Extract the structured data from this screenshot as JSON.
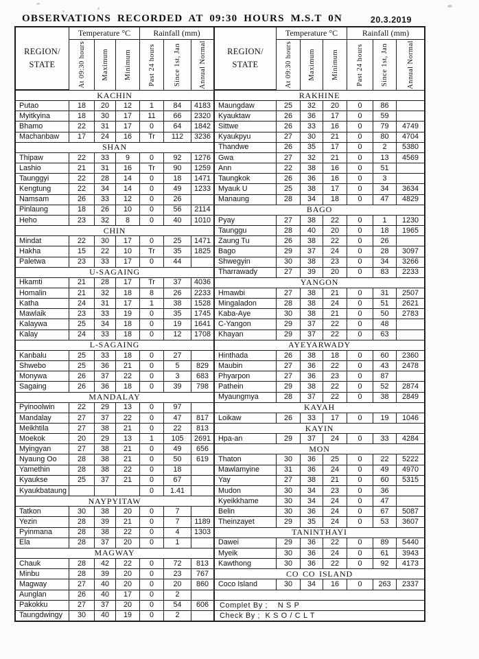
{
  "header": {
    "title": "OBSERVATIONS  RECORDED  AT  09:30  HOURS  M.S.T  0N",
    "date": "20.3.2019"
  },
  "table": {
    "region_header": "REGION/\nSTATE",
    "temp_group": "Temperature  °C",
    "rain_group": "Rainfall (mm)",
    "columns": [
      "At 09:30 hours",
      "Maximum",
      "Minimum",
      "Past 24 hours",
      "Since 1st, Jan",
      "Annual Normal"
    ],
    "left_sections": [
      {
        "name": "KACHIN",
        "rows": [
          {
            "station": "Putao",
            "values": [
              "18",
              "20",
              "12",
              "1",
              "84",
              "4183"
            ]
          },
          {
            "station": "Myitkyina",
            "values": [
              "18",
              "30",
              "17",
              "11",
              "66",
              "2320"
            ]
          },
          {
            "station": "Bhamo",
            "values": [
              "22",
              "31",
              "17",
              "0",
              "64",
              "1842"
            ]
          },
          {
            "station": "Machanbaw",
            "values": [
              "17",
              "24",
              "16",
              "Tr",
              "112",
              "3236"
            ]
          }
        ]
      },
      {
        "name": "SHAN",
        "rows": [
          {
            "station": "Thipaw",
            "values": [
              "22",
              "33",
              "9",
              "0",
              "92",
              "1276"
            ]
          },
          {
            "station": "Lashio",
            "values": [
              "21",
              "31",
              "16",
              "Tr",
              "90",
              "1259"
            ]
          },
          {
            "station": "Taunggyi",
            "values": [
              "22",
              "28",
              "14",
              "0",
              "18",
              "1471"
            ]
          },
          {
            "station": "Kengtung",
            "values": [
              "22",
              "34",
              "14",
              "0",
              "49",
              "1233"
            ]
          },
          {
            "station": "Namsam",
            "values": [
              "26",
              "33",
              "12",
              "0",
              "26",
              ""
            ]
          },
          {
            "station": "Pinlaung",
            "values": [
              "18",
              "26",
              "10",
              "0",
              "56",
              "2114"
            ]
          },
          {
            "station": "Heho",
            "values": [
              "23",
              "32",
              "8",
              "0",
              "40",
              "1010"
            ]
          }
        ]
      },
      {
        "name": "CHIN",
        "rows": [
          {
            "station": "Mindat",
            "values": [
              "22",
              "30",
              "17",
              "0",
              "25",
              "1471"
            ]
          },
          {
            "station": "Hakha",
            "values": [
              "15",
              "22",
              "10",
              "Tr",
              "35",
              "1825"
            ]
          },
          {
            "station": "Paletwa",
            "values": [
              "23",
              "33",
              "17",
              "0",
              "44",
              ""
            ]
          }
        ]
      },
      {
        "name": "U-SAGAING",
        "rows": [
          {
            "station": "Hkamti",
            "values": [
              "21",
              "28",
              "17",
              "Tr",
              "37",
              "4036"
            ]
          },
          {
            "station": "Homalin",
            "values": [
              "21",
              "32",
              "18",
              "8",
              "26",
              "2233"
            ]
          },
          {
            "station": "Katha",
            "values": [
              "24",
              "31",
              "17",
              "1",
              "38",
              "1528"
            ]
          },
          {
            "station": "Mawlaik",
            "values": [
              "23",
              "33",
              "19",
              "0",
              "35",
              "1745"
            ]
          },
          {
            "station": "Kalaywa",
            "values": [
              "25",
              "34",
              "18",
              "0",
              "19",
              "1641"
            ]
          },
          {
            "station": "Kalay",
            "values": [
              "24",
              "33",
              "18",
              "0",
              "12",
              "1708"
            ]
          }
        ]
      },
      {
        "name": "L-SAGAING",
        "rows": [
          {
            "station": "Kanbalu",
            "values": [
              "25",
              "33",
              "18",
              "0",
              "27",
              ""
            ]
          },
          {
            "station": "Shwebo",
            "values": [
              "25",
              "36",
              "21",
              "0",
              "5",
              "829"
            ]
          },
          {
            "station": "Monywa",
            "values": [
              "26",
              "37",
              "22",
              "0",
              "3",
              "683"
            ]
          },
          {
            "station": "Sagaing",
            "values": [
              "26",
              "36",
              "18",
              "0",
              "39",
              "798"
            ]
          }
        ]
      },
      {
        "name": "MANDALAY",
        "rows": [
          {
            "station": "Pyinoolwin",
            "values": [
              "22",
              "29",
              "13",
              "0",
              "97",
              ""
            ]
          },
          {
            "station": "Mandalay",
            "values": [
              "27",
              "37",
              "22",
              "0",
              "47",
              "817"
            ]
          },
          {
            "station": "Meikhtila",
            "values": [
              "27",
              "38",
              "21",
              "0",
              "22",
              "813"
            ]
          },
          {
            "station": "Moekok",
            "values": [
              "20",
              "29",
              "13",
              "1",
              "105",
              "2691"
            ]
          },
          {
            "station": "Myingyan",
            "values": [
              "27",
              "38",
              "21",
              "0",
              "49",
              "656"
            ]
          },
          {
            "station": "Nyaung Oo",
            "values": [
              "28",
              "38",
              "21",
              "0",
              "50",
              "619"
            ]
          },
          {
            "station": "Yamethin",
            "values": [
              "28",
              "38",
              "22",
              "0",
              "18",
              ""
            ]
          },
          {
            "station": "Kyaukse",
            "values": [
              "25",
              "37",
              "21",
              "0",
              "67",
              ""
            ]
          },
          {
            "station": "Kyaukbataung",
            "values": [
              "",
              "",
              "",
              "0",
              "1.41",
              ""
            ]
          }
        ]
      },
      {
        "name": "NAYPYITAW",
        "rows": [
          {
            "station": "Tatkon",
            "values": [
              "30",
              "38",
              "20",
              "0",
              "7",
              ""
            ]
          },
          {
            "station": "Yezin",
            "values": [
              "28",
              "39",
              "21",
              "0",
              "7",
              "1189"
            ]
          },
          {
            "station": "Pyinmana",
            "values": [
              "28",
              "38",
              "22",
              "0",
              "4",
              "1303"
            ]
          },
          {
            "station": "Ela",
            "values": [
              "28",
              "37",
              "20",
              "0",
              "1",
              ""
            ]
          }
        ]
      },
      {
        "name": "MAGWAY",
        "rows": [
          {
            "station": "Chauk",
            "values": [
              "28",
              "42",
              "22",
              "0",
              "72",
              "813"
            ]
          },
          {
            "station": "Minbu",
            "values": [
              "28",
              "39",
              "20",
              "0",
              "23",
              "767"
            ]
          },
          {
            "station": "Magway",
            "values": [
              "27",
              "40",
              "20",
              "0",
              "20",
              "860"
            ]
          },
          {
            "station": "Aunglan",
            "values": [
              "26",
              "40",
              "17",
              "0",
              "2",
              ""
            ]
          },
          {
            "station": "Pakokku",
            "values": [
              "27",
              "37",
              "20",
              "0",
              "54",
              "606"
            ]
          },
          {
            "station": "Taungdwingy",
            "values": [
              "30",
              "40",
              "19",
              "0",
              "2",
              ""
            ]
          }
        ]
      }
    ],
    "right_sections": [
      {
        "name": "RAKHINE",
        "rows": [
          {
            "station": "Maungdaw",
            "values": [
              "25",
              "32",
              "20",
              "0",
              "86",
              ""
            ]
          },
          {
            "station": "Kyauktaw",
            "values": [
              "26",
              "36",
              "17",
              "0",
              "59",
              ""
            ]
          },
          {
            "station": "Sittwe",
            "values": [
              "26",
              "33",
              "16",
              "0",
              "79",
              "4749"
            ]
          },
          {
            "station": "Kyaukpyu",
            "values": [
              "27",
              "30",
              "21",
              "0",
              "80",
              "4704"
            ]
          },
          {
            "station": "Thandwe",
            "values": [
              "26",
              "35",
              "17",
              "0",
              "2",
              "5380"
            ]
          },
          {
            "station": "Gwa",
            "values": [
              "27",
              "32",
              "21",
              "0",
              "13",
              "4569"
            ]
          },
          {
            "station": "Ann",
            "values": [
              "22",
              "38",
              "16",
              "0",
              "51",
              ""
            ]
          },
          {
            "station": "Taungkok",
            "values": [
              "26",
              "36",
              "16",
              "0",
              "3",
              ""
            ]
          },
          {
            "station": "Myauk U",
            "values": [
              "25",
              "38",
              "17",
              "0",
              "34",
              "3634"
            ]
          },
          {
            "station": "Manaung",
            "values": [
              "28",
              "34",
              "18",
              "0",
              "47",
              "4829"
            ]
          }
        ]
      },
      {
        "name": "BAGO",
        "rows": [
          {
            "station": "Pyay",
            "values": [
              "27",
              "38",
              "22",
              "0",
              "1",
              "1230"
            ]
          },
          {
            "station": "Taunggu",
            "values": [
              "28",
              "40",
              "20",
              "0",
              "18",
              "1965"
            ]
          },
          {
            "station": "Zaung Tu",
            "values": [
              "26",
              "38",
              "22",
              "0",
              "26",
              ""
            ]
          },
          {
            "station": "Bago",
            "values": [
              "29",
              "37",
              "24",
              "0",
              "28",
              "3097"
            ]
          },
          {
            "station": "Shwegyin",
            "values": [
              "30",
              "38",
              "23",
              "0",
              "34",
              "3266"
            ]
          },
          {
            "station": "Tharrawady",
            "values": [
              "27",
              "39",
              "20",
              "0",
              "83",
              "2233"
            ]
          }
        ]
      },
      {
        "name": "YANGON",
        "rows": [
          {
            "station": "Hmawbi",
            "values": [
              "27",
              "38",
              "21",
              "0",
              "31",
              "2507"
            ]
          },
          {
            "station": "Mingaladon",
            "values": [
              "28",
              "38",
              "24",
              "0",
              "51",
              "2621"
            ]
          },
          {
            "station": "Kaba-Aye",
            "values": [
              "30",
              "38",
              "21",
              "0",
              "50",
              "2783"
            ]
          },
          {
            "station": "C-Yangon",
            "values": [
              "29",
              "37",
              "22",
              "0",
              "48",
              ""
            ]
          },
          {
            "station": "Khayan",
            "values": [
              "29",
              "37",
              "22",
              "0",
              "63",
              ""
            ]
          }
        ]
      },
      {
        "name": "AYEYARWADY",
        "rows": [
          {
            "station": "Hinthada",
            "values": [
              "26",
              "38",
              "18",
              "0",
              "60",
              "2360"
            ]
          },
          {
            "station": "Maubin",
            "values": [
              "27",
              "36",
              "22",
              "0",
              "43",
              "2478"
            ]
          },
          {
            "station": "Phyarpon",
            "values": [
              "27",
              "36",
              "23",
              "0",
              "87",
              ""
            ]
          },
          {
            "station": "Pathein",
            "values": [
              "29",
              "38",
              "22",
              "0",
              "52",
              "2874"
            ]
          },
          {
            "station": "Myaungmya",
            "values": [
              "28",
              "37",
              "22",
              "0",
              "38",
              "2849"
            ]
          }
        ]
      },
      {
        "name": "KAYAH",
        "rows": [
          {
            "station": "Loikaw",
            "values": [
              "26",
              "33",
              "17",
              "0",
              "19",
              "1046"
            ]
          }
        ]
      },
      {
        "name": "KAYIN",
        "rows": [
          {
            "station": "Hpa-an",
            "values": [
              "29",
              "37",
              "24",
              "0",
              "33",
              "4284"
            ]
          }
        ]
      },
      {
        "name": "MON",
        "rows": [
          {
            "station": "Thaton",
            "values": [
              "30",
              "36",
              "25",
              "0",
              "22",
              "5222"
            ]
          },
          {
            "station": "Mawlamyine",
            "values": [
              "31",
              "36",
              "24",
              "0",
              "49",
              "4970"
            ]
          },
          {
            "station": "Yay",
            "values": [
              "27",
              "38",
              "21",
              "0",
              "60",
              "5315"
            ]
          },
          {
            "station": "Mudon",
            "values": [
              "30",
              "34",
              "23",
              "0",
              "36",
              ""
            ]
          },
          {
            "station": "Kyeikkhame",
            "values": [
              "30",
              "34",
              "24",
              "0",
              "47",
              ""
            ]
          },
          {
            "station": "Belin",
            "values": [
              "30",
              "36",
              "24",
              "0",
              "67",
              "5087"
            ]
          },
          {
            "station": "Theinzayet",
            "values": [
              "29",
              "35",
              "24",
              "0",
              "53",
              "3607"
            ]
          }
        ]
      },
      {
        "name": "TANINTHAYI",
        "rows": [
          {
            "station": "Dawei",
            "values": [
              "29",
              "36",
              "22",
              "0",
              "89",
              "5440"
            ]
          },
          {
            "station": "Myeik",
            "values": [
              "30",
              "36",
              "24",
              "0",
              "61",
              "3943"
            ]
          },
          {
            "station": "Kawthong",
            "values": [
              "30",
              "36",
              "22",
              "0",
              "92",
              "4173"
            ]
          }
        ]
      },
      {
        "name": "CO CO  ISLAND",
        "rows": [
          {
            "station": "Coco  Island",
            "values": [
              "30",
              "34",
              "16",
              "0",
              "263",
              "2337"
            ]
          }
        ]
      }
    ],
    "right_footer": [
      "",
      "Complet By ;    N S P",
      "Check By ;  K S O / C L T"
    ]
  }
}
